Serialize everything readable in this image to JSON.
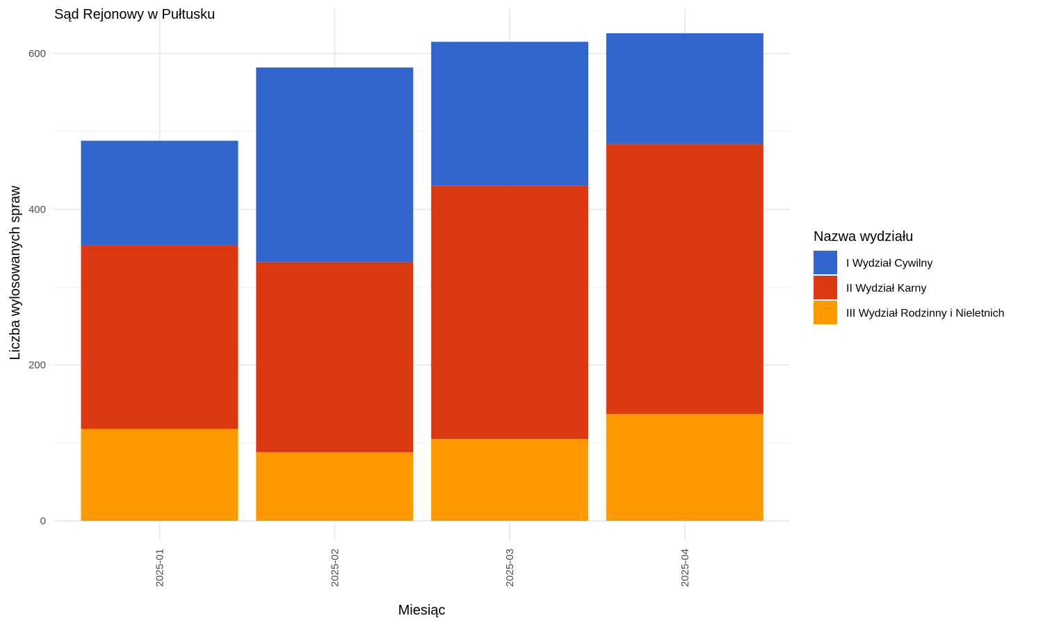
{
  "chart_data": {
    "type": "bar",
    "stacked": true,
    "title": "Sąd Rejonowy w Pułtusku",
    "xlabel": "Miesiąc",
    "ylabel": "Liczba wylosowanych spraw",
    "categories": [
      "2025-01",
      "2025-02",
      "2025-03",
      "2025-04"
    ],
    "ylim": [
      0,
      632
    ],
    "yticks": [
      0,
      200,
      400,
      600
    ],
    "grid": true,
    "legend": {
      "title": "Nazwa wydziału",
      "position": "right"
    },
    "series": [
      {
        "name": "III Wydział Rodzinny i Nieletnich",
        "color": "#FF9900",
        "values": [
          118,
          88,
          105,
          137
        ]
      },
      {
        "name": "II Wydział Karny",
        "color": "#DC3912",
        "values": [
          236,
          244,
          325,
          347
        ]
      },
      {
        "name": "I Wydział Cywilny",
        "color": "#3366CC",
        "values": [
          134,
          250,
          185,
          142
        ]
      }
    ]
  }
}
